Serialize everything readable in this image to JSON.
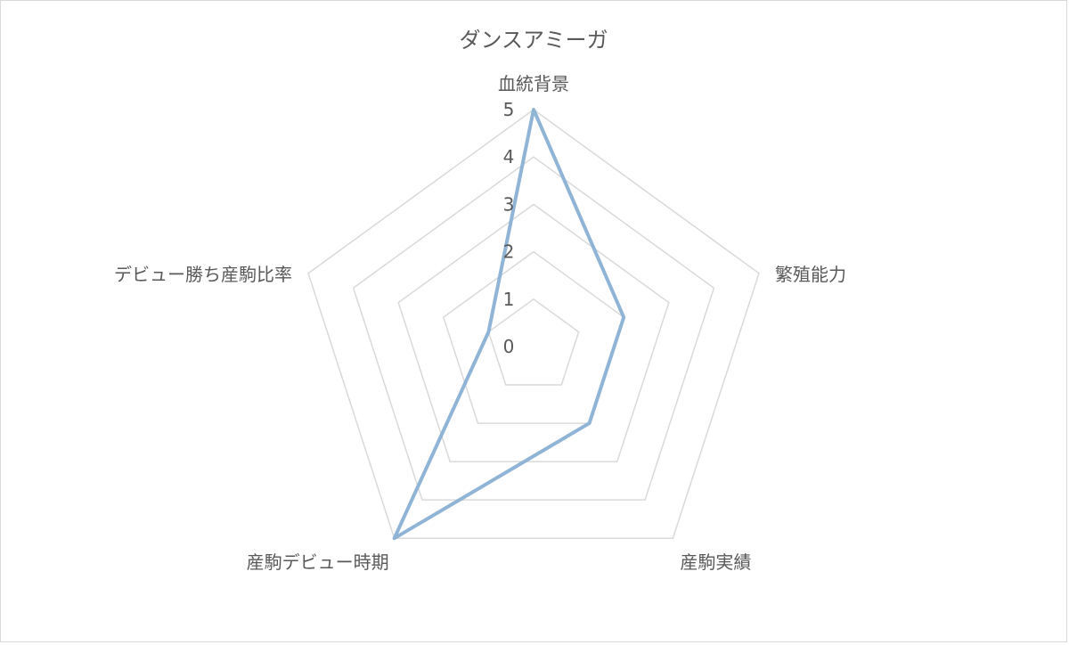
{
  "chart_data": {
    "type": "radar",
    "title": "ダンスアミーガ",
    "axes": [
      "血統背景",
      "繁殖能力",
      "産駒実績",
      "産駒デビュー時期",
      "デビュー勝ち産駒比率"
    ],
    "ticks": [
      "0",
      "1",
      "2",
      "3",
      "4",
      "5"
    ],
    "range": [
      0,
      5
    ],
    "grid": true,
    "series": [
      {
        "values": [
          5,
          2,
          2,
          5,
          1
        ],
        "color": "#8fb4d6"
      }
    ],
    "colors": {
      "grid": "#d9d9d9",
      "text": "#595959",
      "series": "#8fb4d6"
    }
  }
}
